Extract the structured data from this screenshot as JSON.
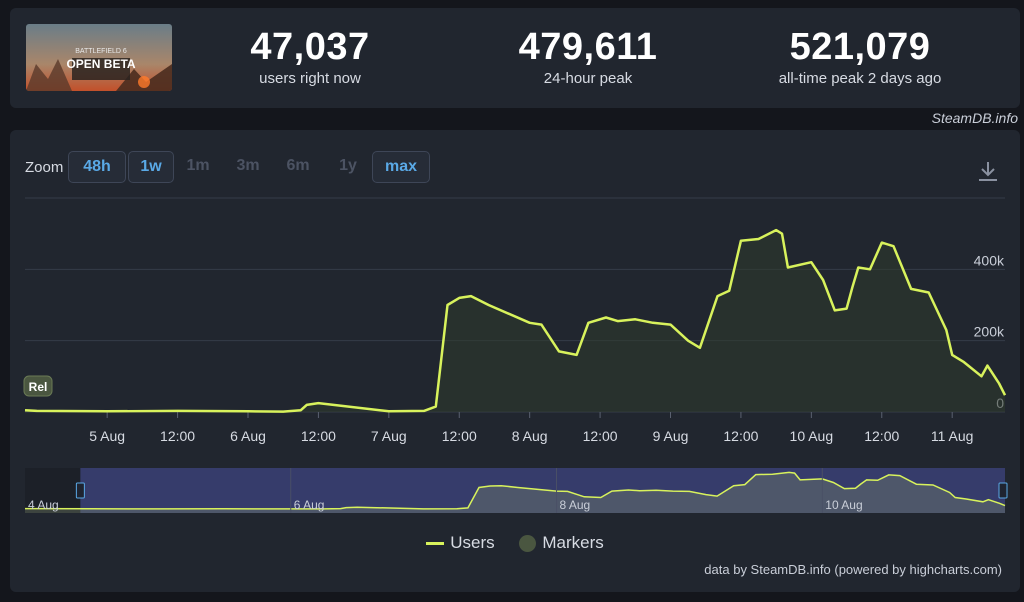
{
  "header": {
    "thumbnail_text": "BATTLEFIELD 6 OPEN BETA",
    "stats": [
      {
        "value": "47,037",
        "label": "users right now"
      },
      {
        "value": "479,611",
        "label": "24-hour peak"
      },
      {
        "value": "521,079",
        "label": "all-time peak 2 days ago"
      }
    ]
  },
  "credit_top": "SteamDB.info",
  "toolbar": {
    "zoom_label": "Zoom",
    "buttons": [
      {
        "label": "48h",
        "active": true
      },
      {
        "label": "1w",
        "active": true
      },
      {
        "label": "1m",
        "active": false
      },
      {
        "label": "3m",
        "active": false
      },
      {
        "label": "6m",
        "active": false
      },
      {
        "label": "1y",
        "active": false
      },
      {
        "label": "max",
        "active": true
      }
    ],
    "download_icon": "download-icon"
  },
  "chart_data": {
    "type": "area",
    "series": [
      {
        "name": "Users",
        "color": "#d8f25c",
        "x": [
          "2025-08-04T00:00",
          "2025-08-04T12:00",
          "2025-08-05T00:00",
          "2025-08-05T12:00",
          "2025-08-06T00:00",
          "2025-08-06T06:00",
          "2025-08-06T09:00",
          "2025-08-06T10:00",
          "2025-08-06T12:00",
          "2025-08-07T00:00",
          "2025-08-07T06:00",
          "2025-08-07T08:00",
          "2025-08-07T10:00",
          "2025-08-07T12:00",
          "2025-08-07T14:00",
          "2025-08-07T17:00",
          "2025-08-08T00:00",
          "2025-08-08T02:00",
          "2025-08-08T05:00",
          "2025-08-08T08:00",
          "2025-08-08T10:00",
          "2025-08-08T13:00",
          "2025-08-08T15:00",
          "2025-08-08T18:00",
          "2025-08-08T21:00",
          "2025-08-09T00:00",
          "2025-08-09T03:00",
          "2025-08-09T05:00",
          "2025-08-09T08:00",
          "2025-08-09T10:00",
          "2025-08-09T12:00",
          "2025-08-09T15:00",
          "2025-08-09T18:00",
          "2025-08-09T19:00",
          "2025-08-09T20:00",
          "2025-08-10T00:00",
          "2025-08-10T02:00",
          "2025-08-10T04:00",
          "2025-08-10T06:00",
          "2025-08-10T07:00",
          "2025-08-10T08:00",
          "2025-08-10T10:00",
          "2025-08-10T12:00",
          "2025-08-10T14:00",
          "2025-08-10T17:00",
          "2025-08-10T20:00",
          "2025-08-10T23:00",
          "2025-08-11T00:00",
          "2025-08-11T02:00",
          "2025-08-11T05:00",
          "2025-08-11T06:00",
          "2025-08-11T08:00",
          "2025-08-11T09:00"
        ],
        "values": [
          5000,
          3000,
          2000,
          3000,
          2000,
          1000,
          5000,
          20000,
          25000,
          2000,
          3000,
          15000,
          300000,
          320000,
          325000,
          300000,
          250000,
          245000,
          170000,
          160000,
          250000,
          265000,
          255000,
          260000,
          250000,
          245000,
          200000,
          180000,
          325000,
          340000,
          480000,
          485000,
          510000,
          500000,
          405000,
          420000,
          370000,
          285000,
          290000,
          350000,
          405000,
          400000,
          475000,
          465000,
          345000,
          335000,
          230000,
          160000,
          140000,
          100000,
          130000,
          80000,
          47037
        ]
      }
    ],
    "xlabel": "",
    "ylabel": "",
    "ylim": [
      0,
      600000
    ],
    "y_ticks": [
      "0",
      "200k",
      "400k"
    ],
    "x_tick_labels": [
      "5 Aug",
      "12:00",
      "6 Aug",
      "12:00",
      "7 Aug",
      "12:00",
      "8 Aug",
      "12:00",
      "9 Aug",
      "12:00",
      "10 Aug",
      "12:00",
      "11 Aug"
    ],
    "navigator_labels": [
      "4 Aug",
      "6 Aug",
      "8 Aug",
      "10 Aug"
    ],
    "marker_label": "Rel",
    "grid": true,
    "legend": [
      "Users",
      "Markers"
    ],
    "legend_position": "bottom"
  },
  "legend": {
    "users": "Users",
    "markers": "Markers"
  },
  "credit_bottom": "data by SteamDB.info (powered by highcharts.com)"
}
